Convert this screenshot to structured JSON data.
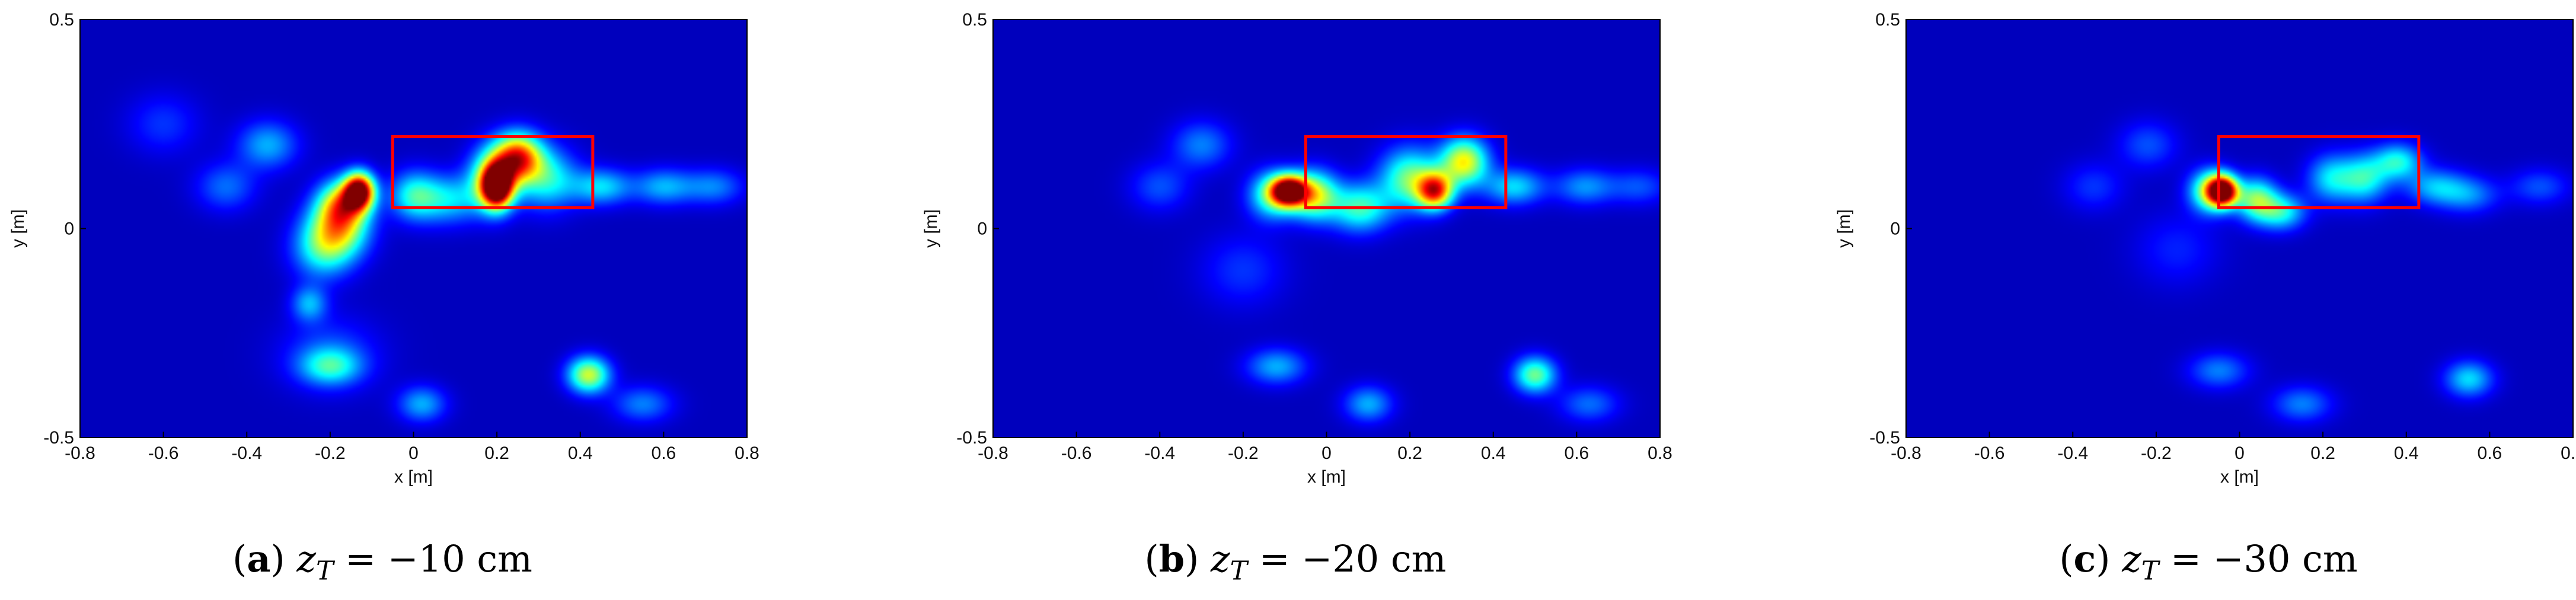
{
  "chart_data": [
    {
      "type": "heatmap",
      "panel_label": "a",
      "caption_var": "z",
      "caption_sub": "T",
      "caption_value": "= −10 cm",
      "xlabel": "x [m]",
      "ylabel": "y [m]",
      "xlim": [
        -0.8,
        0.8
      ],
      "ylim": [
        -0.5,
        0.5
      ],
      "xticks": [
        "-0.8",
        "-0.6",
        "-0.4",
        "-0.2",
        "0",
        "0.2",
        "0.4",
        "0.6",
        "0.8"
      ],
      "yticks": [
        "-0.5",
        "0",
        "0.5"
      ],
      "colormap": "jet",
      "background_color": "#00008F",
      "box": {
        "x0": -0.05,
        "x1": 0.43,
        "y0": 0.05,
        "y1": 0.22,
        "color": "#FF0000"
      },
      "hotspots": [
        {
          "x": -0.13,
          "y": 0.09,
          "amp": 1.0,
          "sx": 0.025,
          "sy": 0.03
        },
        {
          "x": -0.17,
          "y": 0.06,
          "amp": 0.55,
          "sx": 0.04,
          "sy": 0.04
        },
        {
          "x": -0.18,
          "y": 0.0,
          "amp": 0.5,
          "sx": 0.05,
          "sy": 0.05
        },
        {
          "x": -0.22,
          "y": -0.05,
          "amp": 0.3,
          "sx": 0.05,
          "sy": 0.05
        },
        {
          "x": -0.25,
          "y": -0.18,
          "amp": 0.25,
          "sx": 0.03,
          "sy": 0.03
        },
        {
          "x": 0.2,
          "y": 0.1,
          "amp": 1.0,
          "sx": 0.025,
          "sy": 0.035
        },
        {
          "x": 0.25,
          "y": 0.17,
          "amp": 0.78,
          "sx": 0.04,
          "sy": 0.04
        },
        {
          "x": 0.19,
          "y": 0.12,
          "amp": 0.5,
          "sx": 0.04,
          "sy": 0.05
        },
        {
          "x": 0.32,
          "y": 0.12,
          "amp": 0.35,
          "sx": 0.05,
          "sy": 0.05
        },
        {
          "x": 0.08,
          "y": 0.07,
          "amp": 0.3,
          "sx": 0.06,
          "sy": 0.04
        },
        {
          "x": 0.0,
          "y": 0.08,
          "amp": 0.3,
          "sx": 0.04,
          "sy": 0.04
        },
        {
          "x": 0.45,
          "y": 0.1,
          "amp": 0.3,
          "sx": 0.05,
          "sy": 0.03
        },
        {
          "x": 0.6,
          "y": 0.1,
          "amp": 0.25,
          "sx": 0.05,
          "sy": 0.03
        },
        {
          "x": 0.72,
          "y": 0.1,
          "amp": 0.2,
          "sx": 0.05,
          "sy": 0.03
        },
        {
          "x": 0.42,
          "y": -0.35,
          "amp": 0.55,
          "sx": 0.035,
          "sy": 0.03
        },
        {
          "x": -0.2,
          "y": -0.33,
          "amp": 0.3,
          "sx": 0.05,
          "sy": 0.03
        },
        {
          "x": 0.02,
          "y": -0.42,
          "amp": 0.25,
          "sx": 0.04,
          "sy": 0.03
        },
        {
          "x": 0.55,
          "y": -0.42,
          "amp": 0.2,
          "sx": 0.05,
          "sy": 0.03
        },
        {
          "x": -0.35,
          "y": 0.2,
          "amp": 0.25,
          "sx": 0.05,
          "sy": 0.04
        },
        {
          "x": -0.45,
          "y": 0.1,
          "amp": 0.18,
          "sx": 0.05,
          "sy": 0.04
        },
        {
          "x": -0.6,
          "y": 0.25,
          "amp": 0.12,
          "sx": 0.06,
          "sy": 0.05
        },
        {
          "x": -0.2,
          "y": -0.3,
          "amp": 0.15,
          "sx": 0.08,
          "sy": 0.06
        }
      ]
    },
    {
      "type": "heatmap",
      "panel_label": "b",
      "caption_var": "z",
      "caption_sub": "T",
      "caption_value": "= −20 cm",
      "xlabel": "x [m]",
      "ylabel": "y [m]",
      "xlim": [
        -0.8,
        0.8
      ],
      "ylim": [
        -0.5,
        0.5
      ],
      "xticks": [
        "-0.8",
        "-0.6",
        "-0.4",
        "-0.2",
        "0",
        "0.2",
        "0.4",
        "0.6",
        "0.8"
      ],
      "yticks": [
        "-0.5",
        "0",
        "0.5"
      ],
      "colormap": "jet",
      "background_color": "#00008F",
      "box": {
        "x0": -0.05,
        "x1": 0.43,
        "y0": 0.05,
        "y1": 0.22,
        "color": "#FF0000"
      },
      "hotspots": [
        {
          "x": -0.09,
          "y": 0.09,
          "amp": 1.0,
          "sx": 0.03,
          "sy": 0.025
        },
        {
          "x": -0.03,
          "y": 0.08,
          "amp": 0.55,
          "sx": 0.04,
          "sy": 0.04
        },
        {
          "x": -0.13,
          "y": 0.08,
          "amp": 0.4,
          "sx": 0.04,
          "sy": 0.04
        },
        {
          "x": 0.26,
          "y": 0.09,
          "amp": 0.75,
          "sx": 0.03,
          "sy": 0.03
        },
        {
          "x": 0.33,
          "y": 0.16,
          "amp": 0.6,
          "sx": 0.04,
          "sy": 0.04
        },
        {
          "x": 0.2,
          "y": 0.12,
          "amp": 0.45,
          "sx": 0.05,
          "sy": 0.05
        },
        {
          "x": 0.08,
          "y": 0.05,
          "amp": 0.4,
          "sx": 0.05,
          "sy": 0.04
        },
        {
          "x": 0.45,
          "y": 0.1,
          "amp": 0.3,
          "sx": 0.05,
          "sy": 0.03
        },
        {
          "x": 0.62,
          "y": 0.1,
          "amp": 0.22,
          "sx": 0.05,
          "sy": 0.03
        },
        {
          "x": 0.75,
          "y": 0.1,
          "amp": 0.15,
          "sx": 0.05,
          "sy": 0.03
        },
        {
          "x": 0.5,
          "y": -0.35,
          "amp": 0.45,
          "sx": 0.035,
          "sy": 0.03
        },
        {
          "x": -0.12,
          "y": -0.33,
          "amp": 0.25,
          "sx": 0.05,
          "sy": 0.03
        },
        {
          "x": 0.1,
          "y": -0.42,
          "amp": 0.25,
          "sx": 0.04,
          "sy": 0.03
        },
        {
          "x": 0.63,
          "y": -0.42,
          "amp": 0.18,
          "sx": 0.05,
          "sy": 0.03
        },
        {
          "x": -0.3,
          "y": 0.2,
          "amp": 0.2,
          "sx": 0.05,
          "sy": 0.04
        },
        {
          "x": -0.4,
          "y": 0.1,
          "amp": 0.15,
          "sx": 0.05,
          "sy": 0.04
        },
        {
          "x": -0.2,
          "y": -0.1,
          "amp": 0.12,
          "sx": 0.07,
          "sy": 0.06
        }
      ]
    },
    {
      "type": "heatmap",
      "panel_label": "c",
      "caption_var": "z",
      "caption_sub": "T",
      "caption_value": "= −30 cm",
      "xlabel": "x [m]",
      "ylabel": "y [m]",
      "xlim": [
        -0.8,
        0.8
      ],
      "ylim": [
        -0.5,
        0.5
      ],
      "xticks": [
        "-0.8",
        "-0.6",
        "-0.4",
        "-0.2",
        "0",
        "0.2",
        "0.4",
        "0.6",
        "0.8"
      ],
      "yticks": [
        "-0.5",
        "0",
        "0.5"
      ],
      "colormap": "jet",
      "background_color": "#00008F",
      "box": {
        "x0": -0.05,
        "x1": 0.43,
        "y0": 0.05,
        "y1": 0.22,
        "color": "#FF0000"
      },
      "hotspots": [
        {
          "x": -0.04,
          "y": 0.09,
          "amp": 1.0,
          "sx": 0.025,
          "sy": 0.025
        },
        {
          "x": -0.07,
          "y": 0.09,
          "amp": 0.5,
          "sx": 0.035,
          "sy": 0.035
        },
        {
          "x": 0.04,
          "y": 0.07,
          "amp": 0.45,
          "sx": 0.035,
          "sy": 0.035
        },
        {
          "x": 0.1,
          "y": 0.04,
          "amp": 0.35,
          "sx": 0.04,
          "sy": 0.03
        },
        {
          "x": 0.22,
          "y": 0.12,
          "amp": 0.3,
          "sx": 0.04,
          "sy": 0.04
        },
        {
          "x": 0.3,
          "y": 0.12,
          "amp": 0.35,
          "sx": 0.04,
          "sy": 0.04
        },
        {
          "x": 0.38,
          "y": 0.16,
          "amp": 0.35,
          "sx": 0.04,
          "sy": 0.03
        },
        {
          "x": 0.47,
          "y": 0.1,
          "amp": 0.25,
          "sx": 0.05,
          "sy": 0.03
        },
        {
          "x": 0.55,
          "y": 0.08,
          "amp": 0.2,
          "sx": 0.05,
          "sy": 0.03
        },
        {
          "x": 0.72,
          "y": 0.1,
          "amp": 0.15,
          "sx": 0.05,
          "sy": 0.03
        },
        {
          "x": 0.55,
          "y": -0.36,
          "amp": 0.3,
          "sx": 0.04,
          "sy": 0.03
        },
        {
          "x": -0.05,
          "y": -0.34,
          "amp": 0.2,
          "sx": 0.05,
          "sy": 0.03
        },
        {
          "x": 0.15,
          "y": -0.42,
          "amp": 0.2,
          "sx": 0.05,
          "sy": 0.03
        },
        {
          "x": -0.22,
          "y": 0.2,
          "amp": 0.15,
          "sx": 0.05,
          "sy": 0.04
        },
        {
          "x": -0.35,
          "y": 0.1,
          "amp": 0.12,
          "sx": 0.05,
          "sy": 0.04
        },
        {
          "x": -0.15,
          "y": -0.05,
          "amp": 0.1,
          "sx": 0.07,
          "sy": 0.06
        }
      ]
    }
  ]
}
